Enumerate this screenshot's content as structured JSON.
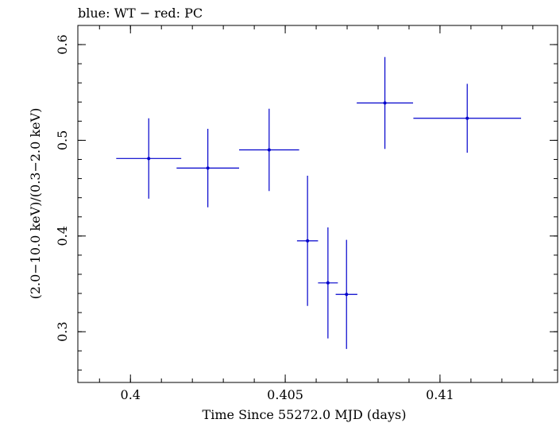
{
  "chart_data": {
    "type": "scatter",
    "title": "blue: WT − red: PC",
    "xlabel": "Time Since 55272.0 MJD (days)",
    "ylabel": "(2.0−10.0 keV)/(0.3−2.0 keV)",
    "xlim": [
      0.3983,
      0.4138
    ],
    "ylim": [
      0.247,
      0.62
    ],
    "x_ticks": [
      {
        "value": 0.4,
        "label": "0.4"
      },
      {
        "value": 0.405,
        "label": "0.405"
      },
      {
        "value": 0.41,
        "label": "0.41"
      }
    ],
    "x_minor_step": 0.001,
    "y_ticks": [
      {
        "value": 0.3,
        "label": "0.3"
      },
      {
        "value": 0.4,
        "label": "0.4"
      },
      {
        "value": 0.5,
        "label": "0.5"
      },
      {
        "value": 0.6,
        "label": "0.6"
      }
    ],
    "y_minor_step": 0.02,
    "series": [
      {
        "color": "#0000cc",
        "points": [
          {
            "x": 0.40059,
            "xerr_lo": 0.00105,
            "xerr_hi": 0.00105,
            "y": 0.481,
            "yerr_lo": 0.042,
            "yerr_hi": 0.042
          },
          {
            "x": 0.4025,
            "xerr_lo": 0.00101,
            "xerr_hi": 0.00101,
            "y": 0.471,
            "yerr_lo": 0.041,
            "yerr_hi": 0.041
          },
          {
            "x": 0.40448,
            "xerr_lo": 0.00097,
            "xerr_hi": 0.00097,
            "y": 0.49,
            "yerr_lo": 0.043,
            "yerr_hi": 0.043
          },
          {
            "x": 0.40572,
            "xerr_lo": 0.00034,
            "xerr_hi": 0.00034,
            "y": 0.395,
            "yerr_lo": 0.068,
            "yerr_hi": 0.068
          },
          {
            "x": 0.40638,
            "xerr_lo": 0.00032,
            "xerr_hi": 0.00032,
            "y": 0.351,
            "yerr_lo": 0.058,
            "yerr_hi": 0.058
          },
          {
            "x": 0.40698,
            "xerr_lo": 0.00035,
            "xerr_hi": 0.00035,
            "y": 0.339,
            "yerr_lo": 0.057,
            "yerr_hi": 0.057
          },
          {
            "x": 0.40822,
            "xerr_lo": 0.00091,
            "xerr_hi": 0.00091,
            "y": 0.539,
            "yerr_lo": 0.048,
            "yerr_hi": 0.048
          },
          {
            "x": 0.41088,
            "xerr_lo": 0.00174,
            "xerr_hi": 0.00174,
            "y": 0.523,
            "yerr_lo": 0.036,
            "yerr_hi": 0.036
          }
        ]
      }
    ]
  }
}
